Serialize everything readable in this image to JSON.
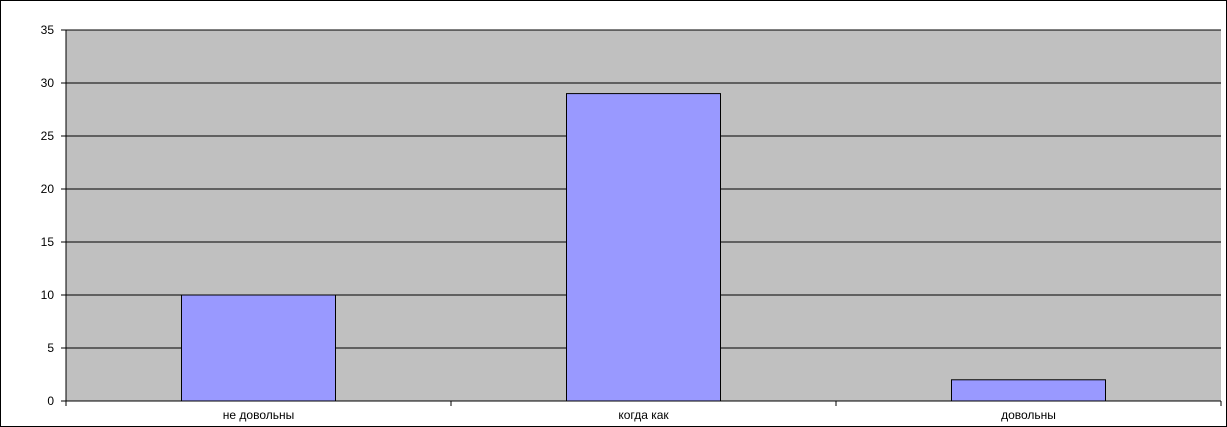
{
  "chart_data": {
    "type": "bar",
    "title": "",
    "xlabel": "",
    "ylabel": "",
    "categories": [
      "не довольны",
      "когда как",
      "довольны"
    ],
    "values": [
      10,
      29,
      2
    ],
    "ylim": [
      0,
      35
    ],
    "yticks": [
      0,
      5,
      10,
      15,
      20,
      25,
      30,
      35
    ],
    "grid": true,
    "legend": "none",
    "colors": {
      "plot_background": "#c0c0c0",
      "bar_fill": "#9999ff",
      "bar_stroke": "#000000",
      "gridline": "#000000"
    }
  }
}
